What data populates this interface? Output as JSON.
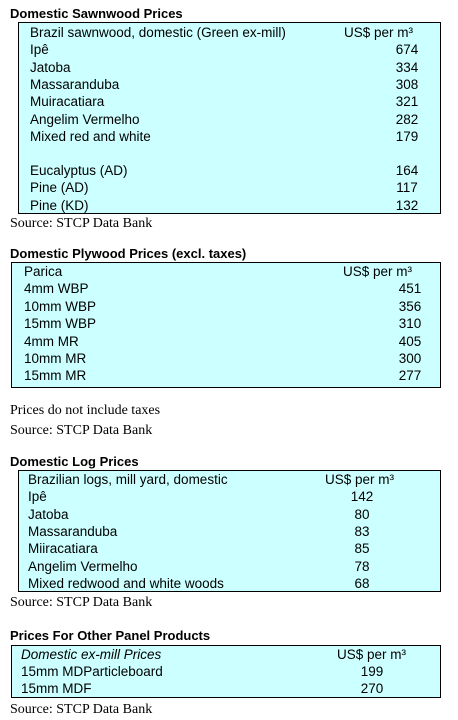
{
  "sections": [
    {
      "title": "Domestic Sawnwood Prices",
      "header": {
        "label": "Brazil sawnwood, domestic (Green ex-mill)",
        "unit": "US$ per m³"
      },
      "groups": [
        [
          {
            "name": "Ipê",
            "value": 674
          },
          {
            "name": "Jatoba",
            "value": 334
          },
          {
            "name": "Massaranduba",
            "value": 308
          },
          {
            "name": "Muiracatiara",
            "value": 321
          },
          {
            "name": "Angelim Vermelho",
            "value": 282
          },
          {
            "name": "Mixed red and white",
            "value": 179
          }
        ],
        [
          {
            "name": "Eucalyptus (AD)",
            "value": 164
          },
          {
            "name": "Pine (AD)",
            "value": 117
          },
          {
            "name": "Pine (KD)",
            "value": 132
          }
        ]
      ],
      "notes": [
        "Source: STCP Data Bank"
      ]
    },
    {
      "title": "Domestic Plywood Prices (excl. taxes)",
      "header": {
        "label": "Parica",
        "unit": "US$ per m³"
      },
      "groups": [
        [
          {
            "name": "4mm WBP",
            "value": 451
          },
          {
            "name": "10mm WBP",
            "value": 356
          },
          {
            "name": "15mm WBP",
            "value": 310
          },
          {
            "name": "4mm MR",
            "value": 405
          },
          {
            "name": "10mm MR",
            "value": 300
          },
          {
            "name": "15mm MR",
            "value": 277
          }
        ]
      ],
      "notes": [
        "Prices do not include taxes",
        "Source: STCP Data Bank"
      ]
    },
    {
      "title": "Domestic Log Prices",
      "header": {
        "label": "Brazilian logs, mill yard, domestic",
        "unit": "US$ per m³"
      },
      "groups": [
        [
          {
            "name": "Ipê",
            "value": 142
          },
          {
            "name": "Jatoba",
            "value": 80
          },
          {
            "name": "Massaranduba",
            "value": 83
          },
          {
            "name": "Miiracatiara",
            "value": 85
          },
          {
            "name": "Angelim Vermelho",
            "value": 78
          },
          {
            "name": "Mixed redwood and white woods",
            "value": 68
          }
        ]
      ],
      "notes": [
        "Source: STCP Data Bank"
      ]
    },
    {
      "title": "Prices For Other Panel Products",
      "header": {
        "label": "Domestic ex-mill Prices",
        "unit": "US$ per m³"
      },
      "groups": [
        [
          {
            "name": "15mm MDParticleboard",
            "value": 199
          },
          {
            "name": "15mm MDF",
            "value": 270
          }
        ]
      ],
      "notes": [
        "Source: STCP Data Bank"
      ]
    }
  ]
}
